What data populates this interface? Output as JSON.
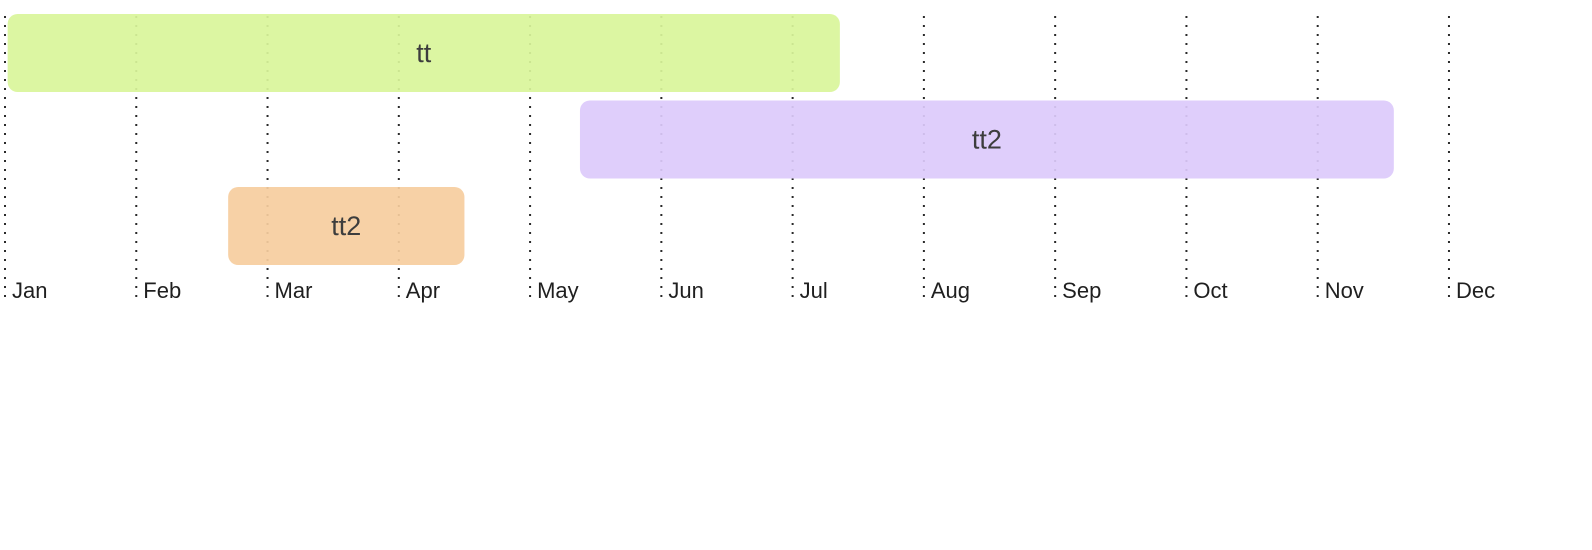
{
  "chart_data": {
    "type": "timeline",
    "months": [
      "Jan",
      "Feb",
      "Mar",
      "Apr",
      "May",
      "Jun",
      "Jul",
      "Aug",
      "Sep",
      "Oct",
      "Nov",
      "Dec"
    ],
    "gridlines": "dotted",
    "bars": [
      {
        "label": "tt",
        "start_month": 0.02,
        "end_month": 6.36,
        "color": "#d9f59a"
      },
      {
        "label": "tt2",
        "start_month": 4.38,
        "end_month": 10.58,
        "color": "#dccafb"
      },
      {
        "label": "tt2",
        "start_month": 1.7,
        "end_month": 3.5,
        "color": "#f6cd9e"
      }
    ]
  }
}
